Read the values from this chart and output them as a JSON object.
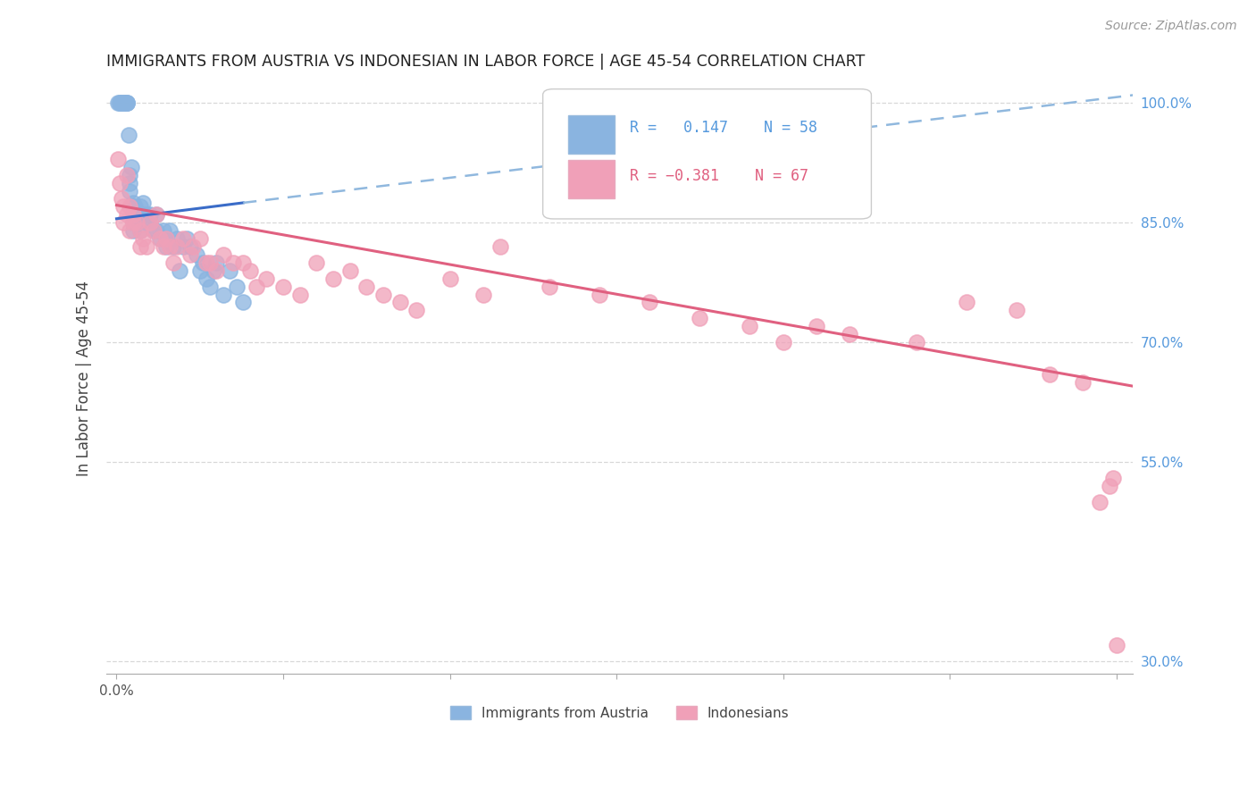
{
  "title": "IMMIGRANTS FROM AUSTRIA VS INDONESIAN IN LABOR FORCE | AGE 45-54 CORRELATION CHART",
  "source": "Source: ZipAtlas.com",
  "ylabel": "In Labor Force | Age 45-54",
  "r_austria": 0.147,
  "n_austria": 58,
  "r_indonesian": -0.381,
  "n_indonesian": 67,
  "xlim": [
    -0.003,
    0.305
  ],
  "ylim": [
    0.285,
    1.025
  ],
  "xtick_positions": [
    0.0,
    0.05,
    0.1,
    0.15,
    0.2,
    0.25,
    0.3
  ],
  "xtick_labels": [
    "0.0%",
    "",
    "",
    "",
    "",
    "",
    "30.0%"
  ],
  "ytick_positions": [
    0.3,
    0.55,
    0.7,
    0.85,
    1.0
  ],
  "ytick_labels": [
    "30.0%",
    "55.0%",
    "70.0%",
    "85.0%",
    "100.0%"
  ],
  "color_austria": "#8ab4e0",
  "color_indonesia": "#f0a0b8",
  "trendline_austria_solid": "#3a6cc8",
  "trendline_austria_dashed": "#90b8de",
  "trendline_indonesia": "#e06080",
  "background": "#ffffff",
  "grid_color": "#d8d8d8",
  "austria_x": [
    0.0005,
    0.001,
    0.001,
    0.0015,
    0.002,
    0.002,
    0.0025,
    0.003,
    0.003,
    0.003,
    0.0035,
    0.004,
    0.004,
    0.004,
    0.0045,
    0.005,
    0.005,
    0.005,
    0.005,
    0.005,
    0.0055,
    0.006,
    0.006,
    0.006,
    0.007,
    0.007,
    0.007,
    0.008,
    0.008,
    0.009,
    0.009,
    0.01,
    0.01,
    0.011,
    0.012,
    0.012,
    0.013,
    0.014,
    0.015,
    0.015,
    0.016,
    0.017,
    0.018,
    0.019,
    0.02,
    0.021,
    0.022,
    0.024,
    0.025,
    0.026,
    0.027,
    0.028,
    0.029,
    0.03,
    0.032,
    0.034,
    0.036,
    0.038
  ],
  "austria_y": [
    1.0,
    1.0,
    1.0,
    1.0,
    1.0,
    1.0,
    1.0,
    1.0,
    1.0,
    1.0,
    0.96,
    0.91,
    0.9,
    0.89,
    0.92,
    0.875,
    0.87,
    0.86,
    0.85,
    0.84,
    0.87,
    0.86,
    0.86,
    0.85,
    0.87,
    0.86,
    0.84,
    0.875,
    0.86,
    0.86,
    0.85,
    0.86,
    0.85,
    0.84,
    0.86,
    0.84,
    0.83,
    0.84,
    0.83,
    0.82,
    0.84,
    0.82,
    0.83,
    0.79,
    0.82,
    0.83,
    0.82,
    0.81,
    0.79,
    0.8,
    0.78,
    0.77,
    0.79,
    0.8,
    0.76,
    0.79,
    0.77,
    0.75
  ],
  "indonesia_x": [
    0.0005,
    0.001,
    0.0015,
    0.002,
    0.002,
    0.003,
    0.003,
    0.004,
    0.004,
    0.005,
    0.005,
    0.006,
    0.007,
    0.007,
    0.008,
    0.009,
    0.01,
    0.011,
    0.012,
    0.013,
    0.014,
    0.015,
    0.016,
    0.017,
    0.018,
    0.02,
    0.022,
    0.023,
    0.025,
    0.027,
    0.028,
    0.03,
    0.032,
    0.035,
    0.038,
    0.04,
    0.042,
    0.045,
    0.05,
    0.055,
    0.06,
    0.065,
    0.07,
    0.075,
    0.08,
    0.085,
    0.09,
    0.1,
    0.11,
    0.115,
    0.13,
    0.145,
    0.16,
    0.175,
    0.19,
    0.2,
    0.21,
    0.22,
    0.24,
    0.255,
    0.27,
    0.28,
    0.29,
    0.295,
    0.298,
    0.299,
    0.3
  ],
  "indonesia_y": [
    0.93,
    0.9,
    0.88,
    0.87,
    0.85,
    0.91,
    0.86,
    0.87,
    0.84,
    0.86,
    0.85,
    0.85,
    0.84,
    0.82,
    0.83,
    0.82,
    0.85,
    0.84,
    0.86,
    0.83,
    0.82,
    0.83,
    0.82,
    0.8,
    0.82,
    0.83,
    0.81,
    0.82,
    0.83,
    0.8,
    0.8,
    0.79,
    0.81,
    0.8,
    0.8,
    0.79,
    0.77,
    0.78,
    0.77,
    0.76,
    0.8,
    0.78,
    0.79,
    0.77,
    0.76,
    0.75,
    0.74,
    0.78,
    0.76,
    0.82,
    0.77,
    0.76,
    0.75,
    0.73,
    0.72,
    0.7,
    0.72,
    0.71,
    0.7,
    0.75,
    0.74,
    0.66,
    0.65,
    0.5,
    0.52,
    0.53,
    0.32
  ],
  "trendline_austria_x0": 0.0,
  "trendline_austria_y0": 0.855,
  "trendline_austria_x1": 0.038,
  "trendline_austria_y1": 0.875,
  "trendline_austria_dash_x1": 0.305,
  "trendline_austria_dash_y1": 1.01,
  "trendline_indonesia_x0": 0.0,
  "trendline_indonesia_y0": 0.872,
  "trendline_indonesia_x1": 0.305,
  "trendline_indonesia_y1": 0.645
}
